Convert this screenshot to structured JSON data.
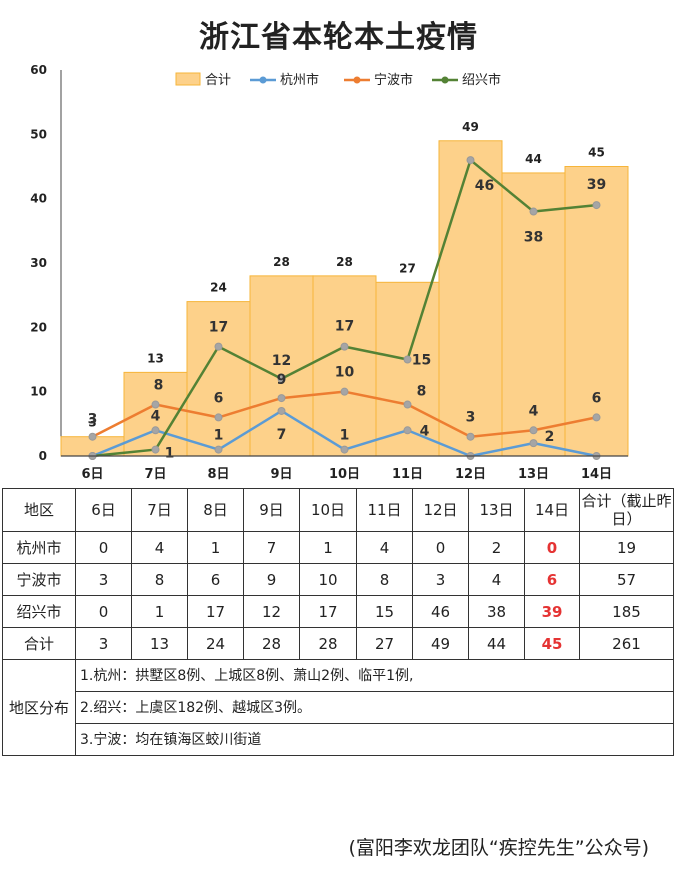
{
  "title": "浙江省本轮本土疫情",
  "chart_data": {
    "type": "bar",
    "categories": [
      "6日",
      "7日",
      "8日",
      "9日",
      "10日",
      "11日",
      "12日",
      "13日",
      "14日"
    ],
    "ylim": [
      0,
      60
    ],
    "yticks": [
      0,
      10,
      20,
      30,
      40,
      50,
      60
    ],
    "bar": {
      "name": "合计",
      "values": [
        3,
        13,
        24,
        28,
        28,
        27,
        49,
        44,
        45
      ]
    },
    "series": [
      {
        "name": "杭州市",
        "type": "line",
        "values": [
          0,
          4,
          1,
          7,
          1,
          4,
          0,
          2,
          0
        ]
      },
      {
        "name": "宁波市",
        "type": "line",
        "values": [
          3,
          8,
          6,
          9,
          10,
          8,
          3,
          4,
          6
        ]
      },
      {
        "name": "绍兴市",
        "type": "line",
        "values": [
          0,
          1,
          17,
          12,
          17,
          15,
          46,
          38,
          39
        ]
      }
    ],
    "legend": "top",
    "colors": {
      "bar_fill": "#fdd18a",
      "bar_border": "#f6b53a",
      "hangzhou": "#5b9bd5",
      "ningbo": "#ed7d31",
      "shaoxing": "#548235"
    }
  },
  "table": {
    "header": [
      "地区",
      "6日",
      "7日",
      "8日",
      "9日",
      "10日",
      "11日",
      "12日",
      "13日",
      "14日",
      "合计（截止昨日）"
    ],
    "rows": [
      {
        "region": "杭州市",
        "values": [
          "0",
          "4",
          "1",
          "7",
          "1",
          "4",
          "0",
          "2"
        ],
        "today": "0",
        "total": "19"
      },
      {
        "region": "宁波市",
        "values": [
          "3",
          "8",
          "6",
          "9",
          "10",
          "8",
          "3",
          "4"
        ],
        "today": "6",
        "total": "57"
      },
      {
        "region": "绍兴市",
        "values": [
          "0",
          "1",
          "17",
          "12",
          "17",
          "15",
          "46",
          "38"
        ],
        "today": "39",
        "total": "185"
      },
      {
        "region": "合计",
        "values": [
          "3",
          "13",
          "24",
          "28",
          "28",
          "27",
          "49",
          "44"
        ],
        "today": "45",
        "total": "261"
      }
    ],
    "distribution_label": "地区分布",
    "distribution": [
      "1.杭州：拱墅区8例、上城区8例、萧山2例、临平1例,",
      "2.绍兴：上虞区182例、越城区3例。",
      "3.宁波：均在镇海区蛟川街道"
    ]
  },
  "footer": "(富阳李欢龙团队“疾控先生”公众号)"
}
